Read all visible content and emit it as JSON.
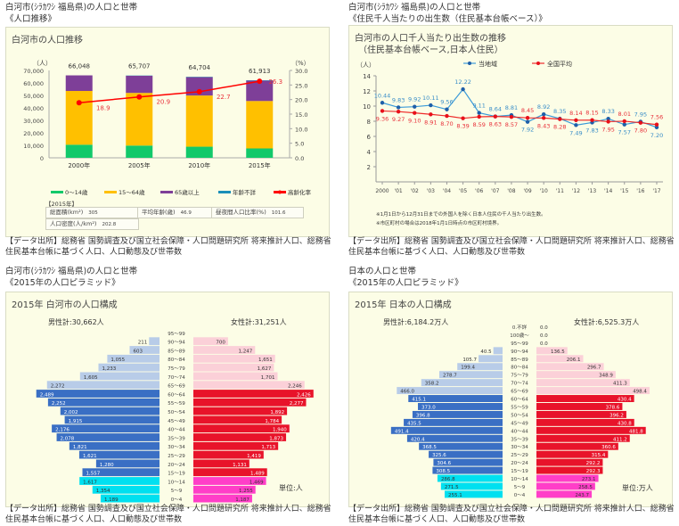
{
  "panels": [
    {
      "heading": "白河市(ｼﾗｶﾜｼ 福島県)の人口と世帯",
      "subheading": "《人口推移》"
    },
    {
      "heading": "白河市(ｼﾗｶﾜｼ 福島県)の人口と世帯",
      "subheading": "《住民千人当たりの出生数（住民基本台帳ベース）》"
    },
    {
      "heading": "白河市(ｼﾗｶﾜｼ 福島県)の人口と世帯",
      "subheading": "《2015年の人口ピラミッド》"
    },
    {
      "heading": "日本の人口と世帯",
      "subheading": "《2015年の人口ピラミッド》"
    }
  ],
  "source_text": "【データ出所】総務省 国勢調査及び国立社会保障・人口問題研究所 将来推計人口、総務省 住民基本台帳に基づく人口、人口動態及び世帯数",
  "stats": {
    "year_label": "【2015年】",
    "items": [
      {
        "label": "総面積(km²)",
        "value": "305"
      },
      {
        "label": "平均年齢(歳)",
        "value": "46.9"
      },
      {
        "label": "昼夜間人口比率(%)",
        "value": "101.6"
      },
      {
        "label": "人口密度(人/km²)",
        "value": "202.8"
      }
    ]
  },
  "notes": [
    "※1月1日から12月31日までの外国人を除く日本人住民の千人当たり出生数。",
    "※市区町村の場合は2018年1月1日時点の市区町村境界。"
  ],
  "colors": {
    "age0_14": "#12c96a",
    "age15_64": "#ffc000",
    "age65": "#7e3f98",
    "unknown": "#1a8fb8",
    "aging": "#ff0000",
    "local": "#1f5fa8",
    "national": "#e8101a"
  },
  "chart_data": [
    {
      "type": "bar",
      "title": "白河市の人口推移",
      "categories": [
        "2000年",
        "2005年",
        "2010年",
        "2015年"
      ],
      "ylabel": "（人）",
      "y2label": "（%）",
      "ylim": [
        0,
        70000
      ],
      "y2lim": [
        0,
        30
      ],
      "yticks": [
        "0",
        "10,000",
        "20,000",
        "30,000",
        "40,000",
        "50,000",
        "60,000",
        "70,000"
      ],
      "y2ticks": [
        "0.0",
        "5.0",
        "10.0",
        "15.0",
        "20.0",
        "25.0",
        "30.0"
      ],
      "totals": [
        "66,048",
        "65,707",
        "64,704",
        "61,913"
      ],
      "series": [
        {
          "name": "0〜14歳",
          "values": [
            10500,
            9800,
            8900,
            7500
          ]
        },
        {
          "name": "15〜64歳",
          "values": [
            43050,
            42200,
            41000,
            38000
          ]
        },
        {
          "name": "65歳以上",
          "values": [
            12498,
            13707,
            14704,
            16313
          ]
        },
        {
          "name": "年齢不詳",
          "values": [
            0,
            200,
            300,
            300
          ]
        }
      ],
      "line": {
        "name": "高齢化率",
        "values": [
          18.9,
          20.9,
          22.7,
          26.3
        ],
        "labels": [
          "18.9",
          "20.9",
          "22.7",
          "26.3"
        ]
      },
      "legend": [
        "0〜14歳",
        "15〜64歳",
        "65歳以上",
        "年齢不詳",
        "高齢化率"
      ]
    },
    {
      "type": "line",
      "title": "白河市の人口千人当たり出生数の推移",
      "subtitle": "（住民基本台帳ベース,日本人住民）",
      "ylabel": "（人）",
      "ylim": [
        0,
        14
      ],
      "yticks": [
        "2",
        "4",
        "6",
        "8",
        "10",
        "12",
        "14"
      ],
      "x": [
        "2000",
        "'01",
        "'02",
        "'03",
        "'04",
        "'05",
        "'06",
        "'07",
        "'08",
        "'09",
        "'10",
        "'11",
        "'12",
        "'13",
        "'14",
        "'15",
        "'16",
        "'17"
      ],
      "series": [
        {
          "name": "当地域",
          "values": [
            10.44,
            9.83,
            9.92,
            10.11,
            9.56,
            12.22,
            9.11,
            8.64,
            8.81,
            7.92,
            8.92,
            8.35,
            7.49,
            7.83,
            8.33,
            7.57,
            7.95,
            7.2
          ],
          "labels": [
            "10.44",
            "9.83",
            "9.92",
            "10.11",
            "9.56",
            "12.22",
            "9.11",
            "8.64",
            "8.81",
            "7.92",
            "8.92",
            "8.35",
            "7.49",
            "7.83",
            "8.33",
            "7.57",
            "7.95",
            "7.20"
          ]
        },
        {
          "name": "全国平均",
          "values": [
            9.36,
            9.27,
            9.1,
            8.91,
            8.7,
            8.39,
            8.59,
            8.63,
            8.57,
            8.45,
            8.43,
            8.28,
            8.14,
            8.15,
            7.95,
            8.01,
            7.8,
            7.56
          ],
          "labels": [
            "9.36",
            "9.27",
            "9.10",
            "8.91",
            "8.70",
            "8.39",
            "8.59",
            "8.63",
            "8.57",
            "8.45",
            "8.43",
            "8.28",
            "8.14",
            "8.15",
            "7.95",
            "8.01",
            "7.80",
            "7.56"
          ]
        }
      ],
      "legend": [
        "当地域",
        "全国平均"
      ]
    },
    {
      "type": "bar",
      "title": "2015年 白河市の人口構成",
      "male_total": "男性計:30,662人",
      "female_total": "女性計:31,251人",
      "unit": "単位:人",
      "max": 2700,
      "categories": [
        "95〜99",
        "90〜94",
        "85〜89",
        "80〜84",
        "75〜79",
        "70〜74",
        "65〜69",
        "60〜64",
        "55〜59",
        "50〜54",
        "45〜49",
        "40〜44",
        "35〜39",
        "30〜34",
        "25〜29",
        "20〜24",
        "15〜19",
        "10〜14",
        "5〜9",
        "0〜4"
      ],
      "male": [
        null,
        211,
        603,
        1055,
        1233,
        1605,
        2272,
        2489,
        2252,
        2002,
        1915,
        2176,
        2078,
        1821,
        1621,
        1280,
        1557,
        1617,
        1354,
        1189
      ],
      "male_labels": [
        "",
        "211",
        "603",
        "1,055",
        "1,233",
        "1,605",
        "2,272",
        "2,489",
        "2,252",
        "2,002",
        "1,915",
        "2,176",
        "2,078",
        "1,821",
        "1,621",
        "1,280",
        "1,557",
        "1,617",
        "1,354",
        "1,189"
      ],
      "female": [
        null,
        700,
        1247,
        1651,
        1627,
        1701,
        2246,
        2426,
        2277,
        1892,
        1784,
        1940,
        1873,
        1713,
        1419,
        1131,
        1489,
        1469,
        1255,
        1187
      ],
      "female_labels": [
        "",
        "700",
        "1,247",
        "1,651",
        "1,627",
        "1,701",
        "2,246",
        "2,426",
        "2,277",
        "1,892",
        "1,784",
        "1,940",
        "1,873",
        "1,713",
        "1,419",
        "1,131",
        "1,489",
        "1,469",
        "1,255",
        "1,187"
      ]
    },
    {
      "type": "bar",
      "title": "2015年 日本の人口構成",
      "male_total": "男性計:6,184.2万人",
      "female_total": "女性計:6,525.3万人",
      "unit": "単位:万人",
      "max": 530,
      "categories": [
        "0.不詳",
        "100歳〜",
        "95〜99",
        "90〜94",
        "85〜89",
        "80〜84",
        "75〜79",
        "70〜74",
        "65〜69",
        "60〜64",
        "55〜59",
        "50〜54",
        "45〜49",
        "40〜44",
        "35〜39",
        "30〜34",
        "25〜29",
        "20〜24",
        "15〜19",
        "10〜14",
        "5〜9",
        "0〜4"
      ],
      "male": [
        null,
        null,
        null,
        40.5,
        105.7,
        199.4,
        278.7,
        358.2,
        466.0,
        415.1,
        373.0,
        396.8,
        435.5,
        491.4,
        420.4,
        368.5,
        325.6,
        304.6,
        308.5,
        286.8,
        271.5,
        255.1
      ],
      "male_labels": [
        "",
        "",
        "",
        "40.5",
        "105.7",
        "199.4",
        "278.7",
        "358.2",
        "466.0",
        "415.1",
        "373.0",
        "396.8",
        "435.5",
        "491.4",
        "420.4",
        "368.5",
        "325.6",
        "304.6",
        "308.5",
        "286.8",
        "271.5",
        "255.1"
      ],
      "female": [
        0.0,
        0.0,
        0.0,
        136.5,
        206.1,
        296.7,
        348.9,
        411.3,
        498.4,
        430.4,
        378.6,
        396.2,
        430.8,
        481.8,
        411.2,
        360.6,
        315.4,
        292.2,
        292.3,
        273.1,
        258.5,
        243.7
      ],
      "female_labels": [
        "0.0",
        "0.0",
        "0.0",
        "136.5",
        "206.1",
        "296.7",
        "348.9",
        "411.3",
        "498.4",
        "430.4",
        "378.6",
        "396.2",
        "430.8",
        "481.8",
        "411.2",
        "360.6",
        "315.4",
        "292.2",
        "292.3",
        "273.1",
        "258.5",
        "243.7"
      ]
    }
  ]
}
